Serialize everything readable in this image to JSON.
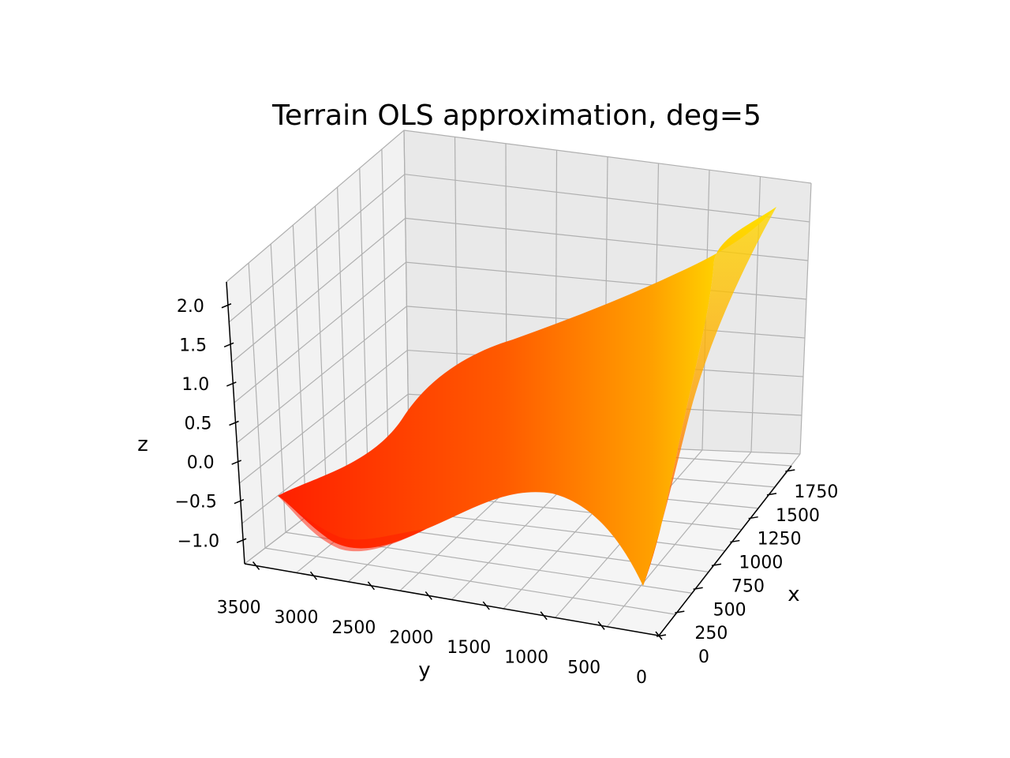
{
  "chart_data": {
    "type": "surface3d",
    "title": "Terrain OLS approximation, deg=5",
    "xlabel": "x",
    "ylabel": "y",
    "zlabel": "z",
    "x_ticks": [
      "0",
      "250",
      "500",
      "750",
      "1000",
      "1250",
      "1500",
      "1750"
    ],
    "y_ticks": [
      "0",
      "500",
      "1000",
      "1500",
      "2000",
      "2500",
      "3000",
      "3500"
    ],
    "z_ticks": [
      "−1.0",
      "−0.5",
      "0.0",
      "0.5",
      "1.0",
      "1.5",
      "2.0"
    ],
    "xlim": [
      0,
      1800
    ],
    "ylim": [
      0,
      3600
    ],
    "zlim": [
      -1.3,
      2.3
    ],
    "colormap": "autumn",
    "colormap_colors": [
      "#ff0000",
      "#ffff00"
    ],
    "grid": true,
    "pane_color": "#f2f2f2",
    "surface_z_range": [
      -1.2,
      2.2
    ],
    "surface_edges": {
      "y_0": [
        {
          "x": 0,
          "z": -1.2
        },
        {
          "x": 300,
          "z": -0.4
        },
        {
          "x": 600,
          "z": 0.4
        },
        {
          "x": 900,
          "z": 0.9
        },
        {
          "x": 1200,
          "z": 1.4
        },
        {
          "x": 1500,
          "z": 1.8
        },
        {
          "x": 1800,
          "z": 2.2
        }
      ],
      "x_0": [
        {
          "y": 0,
          "z": -1.2
        },
        {
          "y": 500,
          "z": -0.5
        },
        {
          "y": 1000,
          "z": -0.4
        },
        {
          "y": 1500,
          "z": -0.5
        },
        {
          "y": 2000,
          "z": -0.7
        },
        {
          "y": 2500,
          "z": -0.9
        },
        {
          "y": 3000,
          "z": -0.9
        },
        {
          "y": 3500,
          "z": -0.5
        }
      ]
    }
  }
}
